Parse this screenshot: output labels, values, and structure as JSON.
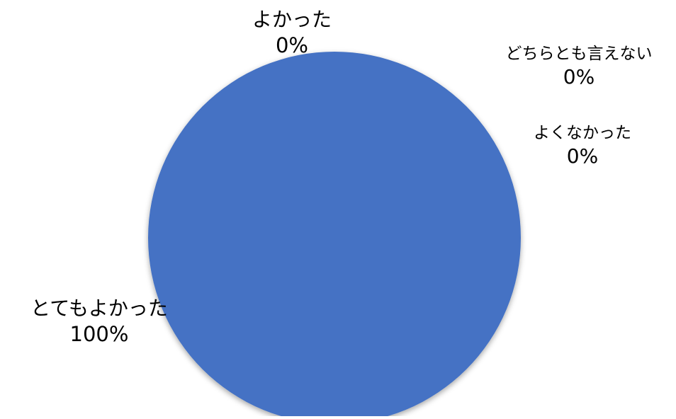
{
  "chart_data": {
    "type": "pie",
    "categories": [
      "とてもよかった",
      "よかった",
      "どちらとも言えない",
      "よくなかった"
    ],
    "values": [
      100,
      0,
      0,
      0
    ],
    "labels": [
      "100%",
      "0%",
      "0%",
      "0%"
    ],
    "colors": [
      "#4472c4",
      "#ed7d31",
      "#a5a5a5",
      "#ffc000"
    ],
    "legend": "none",
    "data_labels": "outside"
  }
}
